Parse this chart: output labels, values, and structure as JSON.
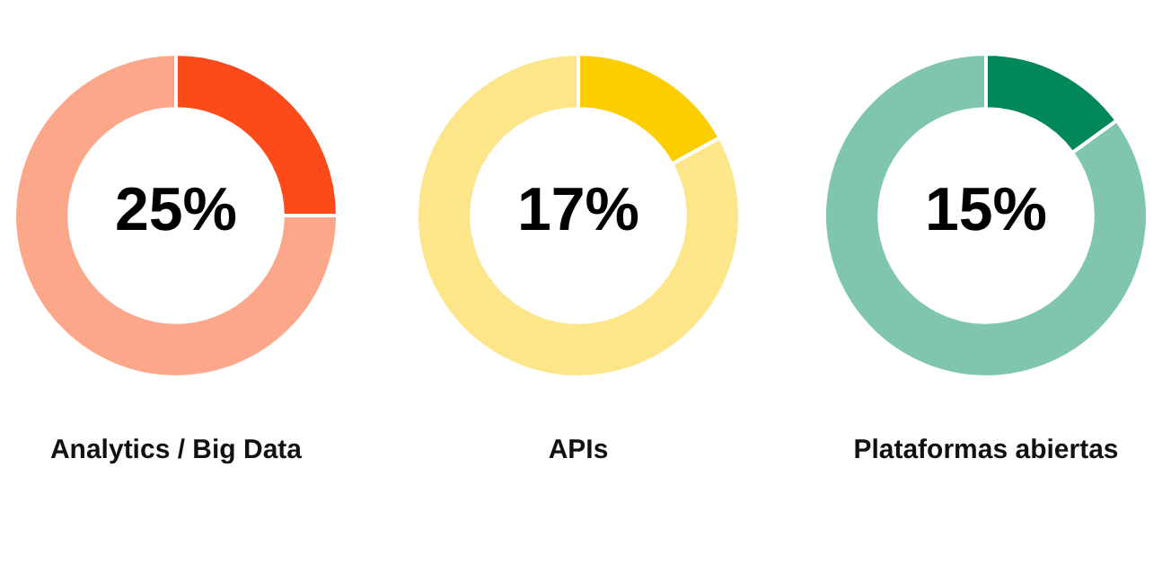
{
  "chart_data": [
    {
      "type": "donut",
      "title": "Analytics / Big Data",
      "categories": [
        null,
        null
      ],
      "values": [
        25,
        75
      ],
      "colors": [
        "#fc4a1a",
        "#fca68a"
      ],
      "value_labels": [
        "25%",
        null
      ]
    },
    {
      "type": "donut",
      "title": "APIs",
      "categories": [
        null,
        null
      ],
      "values": [
        17,
        83
      ],
      "colors": [
        "#fcce00",
        "#fde68a"
      ],
      "value_labels": [
        "17%",
        null
      ]
    },
    {
      "type": "donut",
      "title": "Plataformas abiertas",
      "categories": [
        null,
        null
      ],
      "values": [
        15,
        85
      ],
      "colors": [
        "#00875a",
        "#80c6ad"
      ],
      "value_labels": [
        "15%",
        null
      ]
    }
  ]
}
